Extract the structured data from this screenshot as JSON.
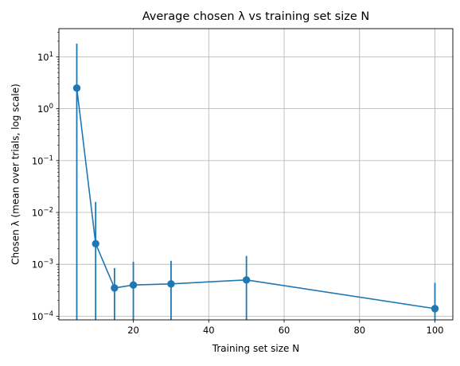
{
  "chart_data": {
    "type": "line",
    "title": "Average chosen λ vs training set size N",
    "xlabel": "Training set size N",
    "ylabel": "Chosen λ (mean over trials, log scale)",
    "x": [
      5,
      10,
      15,
      20,
      30,
      50,
      100
    ],
    "series": [
      {
        "values": [
          2.5,
          0.0025,
          0.00035,
          0.0004,
          0.00042,
          0.0005,
          0.00014
        ],
        "err_upper": [
          18,
          0.016,
          0.00085,
          0.00112,
          0.00117,
          0.00145,
          0.00044
        ],
        "err_lower_clipped": true,
        "color": "#1f77b4"
      }
    ],
    "xlim": [
      0.25,
      104.75
    ],
    "ylim": [
      8.5e-05,
      35
    ],
    "xscale": "linear",
    "yscale": "log",
    "x_ticks": [
      20,
      40,
      60,
      80,
      100
    ],
    "y_ticks": [
      {
        "base": "10",
        "exp": "−4",
        "value": 0.0001
      },
      {
        "base": "10",
        "exp": "−3",
        "value": 0.001
      },
      {
        "base": "10",
        "exp": "−2",
        "value": 0.01
      },
      {
        "base": "10",
        "exp": "−1",
        "value": 0.1
      },
      {
        "base": "10",
        "exp": "0",
        "value": 1
      },
      {
        "base": "10",
        "exp": "1",
        "value": 10
      }
    ],
    "grid": true,
    "legend": "none"
  }
}
